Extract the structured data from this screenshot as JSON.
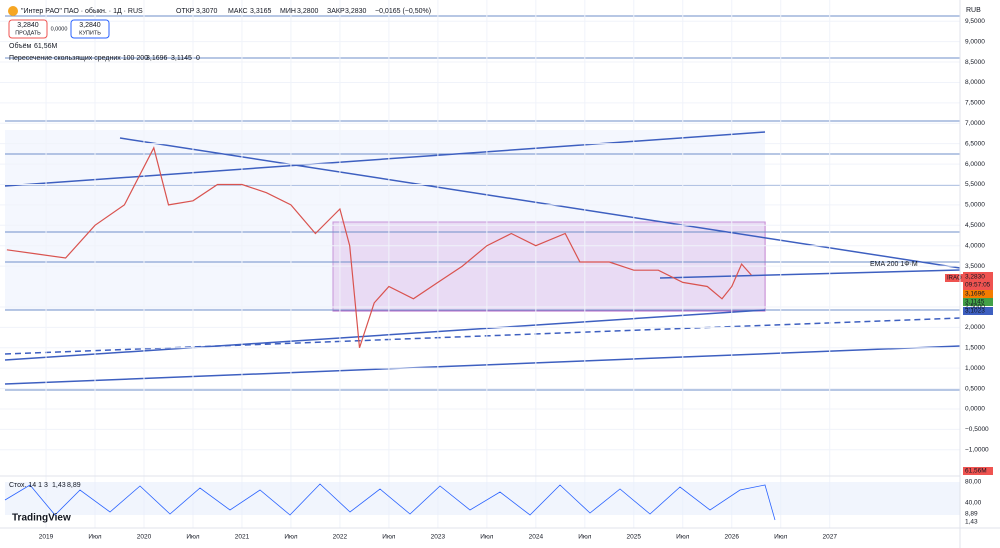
{
  "header": {
    "symbol": "\"Интер РАО\" ПАО · обыкн. · 1Д · RUS",
    "open_label": "ОТКР",
    "open": "3,3070",
    "high_label": "МАКС",
    "high": "3,3165",
    "low_label": "МИН",
    "low": "3,2800",
    "close_label": "ЗАКР",
    "close": "3,2830",
    "change": "−0,0165 (−0,50%)",
    "sell_price": "3,2840",
    "sell": "ПРОДАТЬ",
    "spread": "0,0000",
    "buy_price": "3,2840",
    "buy": "КУПИТЬ",
    "currency": "RUB"
  },
  "indicators": {
    "volume_label": "Объём",
    "volume": "61,56M",
    "ma_cross": "Пересечение скользящих средних 100 200",
    "ma100": "3,1696",
    "ma200": "3,1145",
    "ma_extra": "0",
    "stoch_label": "Стох. 14 1 3",
    "stoch_k": "1,43",
    "stoch_d": "8,89",
    "stoch_80": "80,00",
    "stoch_40": "40,00",
    "ema_note": "EMA 200 1Ф·М"
  },
  "price_labels": {
    "ticker": "IRAO",
    "last": "3,2830",
    "timer": "09:57:05",
    "ma100": "3,1696",
    "ma200": "3,1145",
    "level": "3,1023",
    "volume": "61,56M"
  },
  "brand": "TradingView",
  "chart_data": {
    "type": "line",
    "color": "#d9534f",
    "x": [
      2018.6,
      2018.9,
      2019.2,
      2019.5,
      2019.8,
      2020.1,
      2020.25,
      2020.5,
      2020.75,
      2021.0,
      2021.25,
      2021.5,
      2021.75,
      2022.0,
      2022.1,
      2022.2,
      2022.35,
      2022.5,
      2022.75,
      2023.0,
      2023.25,
      2023.5,
      2023.75,
      2024.0,
      2024.3,
      2024.45,
      2024.75,
      2025.0,
      2025.25,
      2025.5,
      2025.75,
      2025.9,
      2026.0,
      2026.1,
      2026.2
    ],
    "values": [
      3.9,
      3.8,
      3.7,
      4.5,
      5.0,
      6.4,
      5.0,
      5.1,
      5.5,
      5.5,
      5.3,
      5.0,
      4.3,
      4.9,
      4.0,
      1.5,
      2.6,
      3.0,
      2.7,
      3.1,
      3.5,
      4.0,
      4.3,
      4.0,
      4.3,
      3.6,
      3.6,
      3.4,
      3.4,
      3.1,
      3.0,
      2.7,
      3.0,
      3.55,
      3.283
    ],
    "ylim": [
      -1.25,
      10.02
    ],
    "yticks": [
      {
        "value": 9.5,
        "label": "9,5000"
      },
      {
        "value": 9,
        "label": "9,0000"
      },
      {
        "value": 8.5,
        "label": "8,5000"
      },
      {
        "value": 8,
        "label": "8,0000"
      },
      {
        "value": 7.5,
        "label": "7,5000"
      },
      {
        "value": 7,
        "label": "7,0000"
      },
      {
        "value": 6.5,
        "label": "6,5000"
      },
      {
        "value": 6,
        "label": "6,0000"
      },
      {
        "value": 5.5,
        "label": "5,5000"
      },
      {
        "value": 5,
        "label": "5,0000"
      },
      {
        "value": 4.5,
        "label": "4,5000"
      },
      {
        "value": 4,
        "label": "4,0000"
      },
      {
        "value": 3.5,
        "label": "3,5000"
      },
      {
        "value": 2.5,
        "label": "2,5000"
      },
      {
        "value": 2,
        "label": "2,0000"
      },
      {
        "value": 1.5,
        "label": "1,5000"
      },
      {
        "value": 1,
        "label": "1,0000"
      },
      {
        "value": 0.5,
        "label": "0,5000"
      },
      {
        "value": 0,
        "label": "0,0000"
      },
      {
        "value": -0.5,
        "label": "−0,5000"
      },
      {
        "value": -1,
        "label": "−1,0000"
      }
    ],
    "xlim": [
      2018.53,
      2028.33
    ],
    "xticks": [
      {
        "value": 2019,
        "label": "2019"
      },
      {
        "value": 2019.5,
        "label": "Июл"
      },
      {
        "value": 2020,
        "label": "2020"
      },
      {
        "value": 2020.5,
        "label": "Июл"
      },
      {
        "value": 2021,
        "label": "2021"
      },
      {
        "value": 2021.5,
        "label": "Июл"
      },
      {
        "value": 2022,
        "label": "2022"
      },
      {
        "value": 2022.5,
        "label": "Июл"
      },
      {
        "value": 2023,
        "label": "2023"
      },
      {
        "value": 2023.5,
        "label": "Июл"
      },
      {
        "value": 2024,
        "label": "2024"
      },
      {
        "value": 2024.5,
        "label": "Июл"
      },
      {
        "value": 2025,
        "label": "2025"
      },
      {
        "value": 2025.5,
        "label": "Июл"
      },
      {
        "value": 2026,
        "label": "2026"
      },
      {
        "value": 2026.5,
        "label": "Июл"
      },
      {
        "value": 2027,
        "label": "2027"
      }
    ],
    "grid": true
  }
}
